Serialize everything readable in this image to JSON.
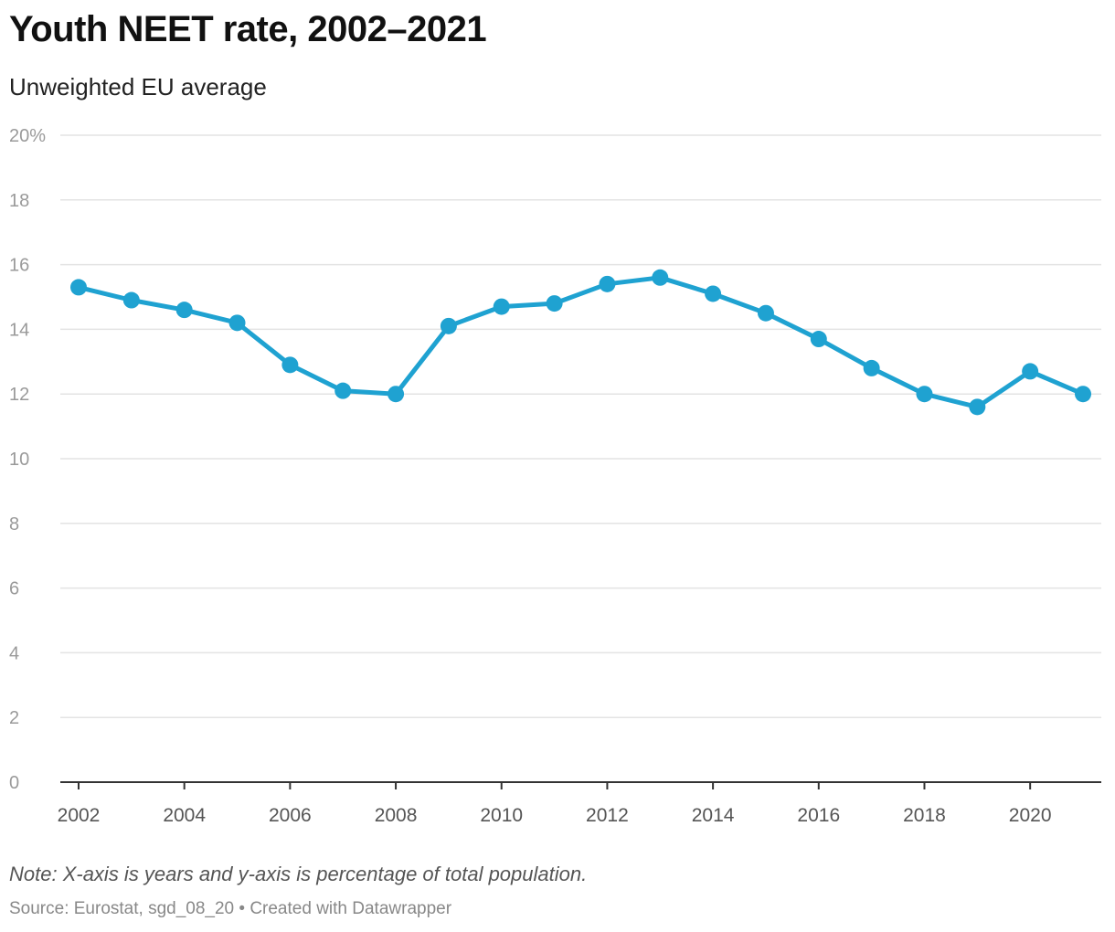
{
  "chart_data": {
    "type": "line",
    "title": "Youth NEET rate, 2002–2021",
    "subtitle": "Unweighted EU average",
    "xlabel": "",
    "ylabel": "",
    "ylim": [
      0,
      20
    ],
    "xlim": [
      2002,
      2021
    ],
    "yticks": [
      0,
      2,
      4,
      6,
      8,
      10,
      12,
      14,
      16,
      18,
      20
    ],
    "ytick_labels": [
      "0",
      "2",
      "4",
      "6",
      "8",
      "10",
      "12",
      "14",
      "16",
      "18",
      "20%"
    ],
    "xticks": [
      2002,
      2004,
      2006,
      2008,
      2010,
      2012,
      2014,
      2016,
      2018,
      2020
    ],
    "xtick_labels": [
      "2002",
      "2004",
      "2006",
      "2008",
      "2010",
      "2012",
      "2014",
      "2016",
      "2018",
      "2020"
    ],
    "grid": true,
    "series": [
      {
        "color": "#1fa2d1",
        "x": [
          2002,
          2003,
          2004,
          2005,
          2006,
          2007,
          2008,
          2009,
          2010,
          2011,
          2012,
          2013,
          2014,
          2015,
          2016,
          2017,
          2018,
          2019,
          2020,
          2021
        ],
        "values": [
          15.3,
          14.9,
          14.6,
          14.2,
          12.9,
          12.1,
          12.0,
          14.1,
          14.7,
          14.8,
          15.4,
          15.6,
          15.1,
          14.5,
          13.7,
          12.8,
          12.0,
          11.6,
          12.7,
          12.0
        ]
      }
    ]
  },
  "footer": {
    "note": "Note: X-axis is years and y-axis is percentage of total population.",
    "source": "Source: Eurostat, sgd_08_20 • Created with Datawrapper"
  }
}
